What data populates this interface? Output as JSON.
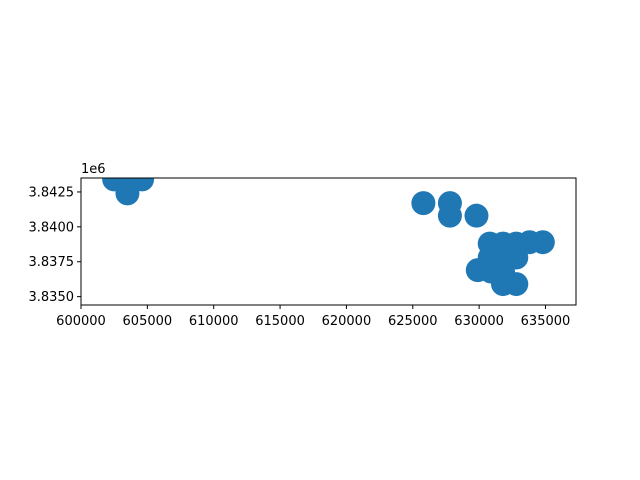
{
  "chart_data": {
    "type": "scatter",
    "title": "",
    "xlabel": "",
    "ylabel": "",
    "offset_text": "1e6",
    "xlim": [
      600000,
      637300
    ],
    "ylim": [
      3834400,
      3843500
    ],
    "x_ticks": [
      600000,
      605000,
      610000,
      615000,
      620000,
      625000,
      630000,
      635000
    ],
    "x_tick_labels": [
      "600000",
      "605000",
      "610000",
      "615000",
      "620000",
      "625000",
      "630000",
      "635000"
    ],
    "y_ticks": [
      3835000,
      3837500,
      3840000,
      3842500
    ],
    "y_tick_labels": [
      "3.8350",
      "3.8375",
      "3.8400",
      "3.8425"
    ],
    "marker_color": "#1f77b4",
    "marker_shape": "circle",
    "grid": false,
    "points": [
      {
        "x": 602500,
        "y": 3843400
      },
      {
        "x": 603500,
        "y": 3843500
      },
      {
        "x": 604600,
        "y": 3843400
      },
      {
        "x": 603500,
        "y": 3842400
      },
      {
        "x": 625800,
        "y": 3841700
      },
      {
        "x": 627800,
        "y": 3841700
      },
      {
        "x": 627800,
        "y": 3840800
      },
      {
        "x": 629800,
        "y": 3840800
      },
      {
        "x": 630800,
        "y": 3838800
      },
      {
        "x": 631800,
        "y": 3838800
      },
      {
        "x": 632800,
        "y": 3838800
      },
      {
        "x": 633800,
        "y": 3838900
      },
      {
        "x": 634800,
        "y": 3838900
      },
      {
        "x": 630800,
        "y": 3837800
      },
      {
        "x": 631800,
        "y": 3837800
      },
      {
        "x": 632800,
        "y": 3837800
      },
      {
        "x": 629900,
        "y": 3836900
      },
      {
        "x": 630900,
        "y": 3836800
      },
      {
        "x": 631800,
        "y": 3836800
      },
      {
        "x": 631800,
        "y": 3835900
      },
      {
        "x": 632800,
        "y": 3835900
      }
    ]
  }
}
